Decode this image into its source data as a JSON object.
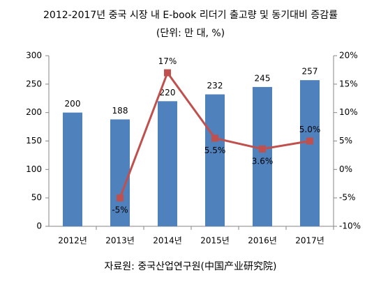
{
  "chart_data": {
    "type": "bar-line",
    "title": "2012-2017년 중국 시장 내 E-book 리더기 출고량 및 동기대비 증감률",
    "subtitle": "(단위: 만 대, %)",
    "source": "자료원: 중국산업연구원(中国产业研究院)",
    "categories": [
      "2012년",
      "2013년",
      "2014년",
      "2015년",
      "2016년",
      "2017년"
    ],
    "series": [
      {
        "type": "bar",
        "color": "#4f81bd",
        "values": [
          200,
          188,
          220,
          232,
          245,
          257
        ]
      },
      {
        "type": "line",
        "axis": "y2",
        "color": "#c0504d",
        "values": [
          null,
          -5,
          17,
          5.5,
          3.6,
          5.0
        ],
        "value_labels": [
          null,
          "-5%",
          "17%",
          "5.5%",
          "3.6%",
          "5.0%"
        ]
      }
    ],
    "ylim": [
      0,
      300
    ],
    "yticks": [
      0,
      50,
      100,
      150,
      200,
      250,
      300
    ],
    "y2lim": [
      -10,
      20
    ],
    "y2ticks": [
      {
        "value": -10,
        "label": "-10%"
      },
      {
        "value": -5,
        "label": "-5%"
      },
      {
        "value": 0,
        "label": "0%"
      },
      {
        "value": 5,
        "label": "5%"
      },
      {
        "value": 10,
        "label": "10%"
      },
      {
        "value": 15,
        "label": "15%"
      },
      {
        "value": 20,
        "label": "20%"
      }
    ]
  }
}
